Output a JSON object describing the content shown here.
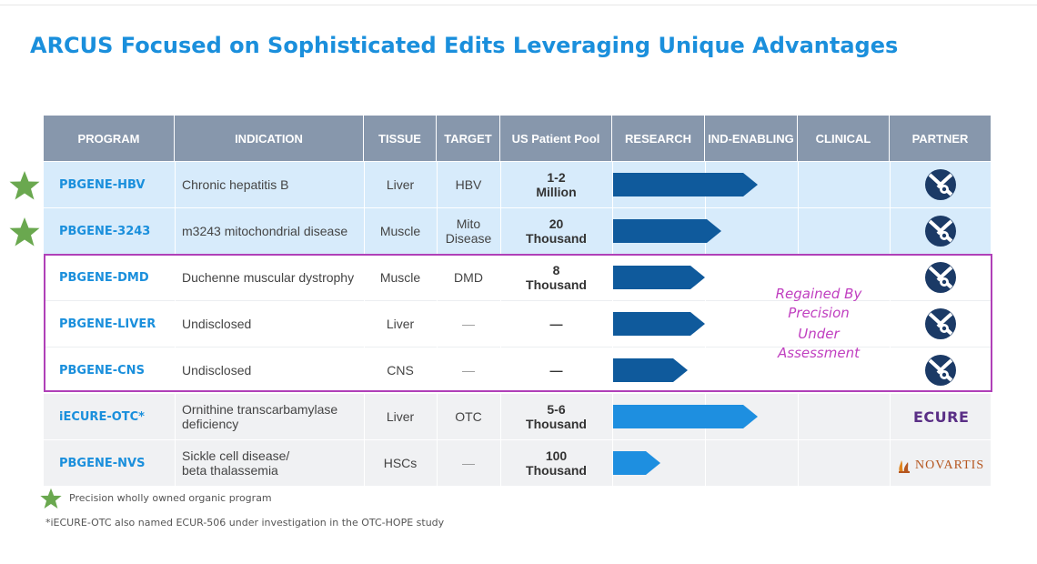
{
  "slide": {
    "title": "ARCUS Focused on Sophisticated Edits Leveraging Unique Advantages"
  },
  "table": {
    "headers": [
      "PROGRAM",
      "INDICATION",
      "TISSUE",
      "TARGET",
      "US Patient Pool",
      "RESEARCH",
      "IND-ENABLING",
      "CLINICAL",
      "PARTNER"
    ],
    "rows": [
      {
        "program": "PBGENE-HBV",
        "indication": "Chronic hepatitis B",
        "tissue": "Liver",
        "target": "HBV",
        "pool_line1": "1-2",
        "pool_line2": "Million",
        "stage_progress": 0.52,
        "bar_color": "#0f5a9c",
        "partner": "Precision",
        "wholly_owned": true
      },
      {
        "program": "PBGENE-3243",
        "indication": "m3243 mitochondrial disease",
        "tissue": "Muscle",
        "target_line1": "Mito",
        "target_line2": "Disease",
        "pool_line1": "20",
        "pool_line2": "Thousand",
        "stage_progress": 0.39,
        "bar_color": "#0f5a9c",
        "partner": "Precision",
        "wholly_owned": true
      },
      {
        "program": "PBGENE-DMD",
        "indication": "Duchenne muscular dystrophy",
        "tissue": "Muscle",
        "target": "DMD",
        "pool_line1": "8",
        "pool_line2": "Thousand",
        "stage_progress": 0.33,
        "bar_color": "#0f5a9c",
        "partner": "Precision"
      },
      {
        "program": "PBGENE-LIVER",
        "indication": "Undisclosed",
        "tissue": "Liver",
        "target": "—",
        "pool_line1": "—",
        "stage_progress": 0.33,
        "bar_color": "#0f5a9c",
        "partner": "Precision"
      },
      {
        "program": "PBGENE-CNS",
        "indication": "Undisclosed",
        "tissue": "CNS",
        "target": "—",
        "pool_line1": "—",
        "stage_progress": 0.27,
        "bar_color": "#0f5a9c",
        "partner": "Precision"
      },
      {
        "program": "iECURE-OTC*",
        "indication_line1": "Ornithine transcarbamylase",
        "indication_line2": "deficiency",
        "tissue": "Liver",
        "target": "OTC",
        "pool_line1": "5-6",
        "pool_line2": "Thousand",
        "stage_progress": 0.52,
        "bar_color": "#1e8fe0",
        "partner": "ECURE"
      },
      {
        "program": "PBGENE-NVS",
        "indication_line1": "Sickle cell disease/",
        "indication_line2": "beta thalassemia",
        "tissue": "HSCs",
        "target": "—",
        "pool_line1": "100",
        "pool_line2": "Thousand",
        "stage_progress": 0.17,
        "bar_color": "#1e8fe0",
        "partner": "NOVARTIS"
      }
    ]
  },
  "annotation": {
    "line1": "Regained By",
    "line2": "Precision",
    "line3": "Under",
    "line4": "Assessment"
  },
  "partners": {
    "ecure": "ECURE",
    "novartis": "NOVARTIS"
  },
  "legend": {
    "star_text": "Precision wholly owned organic program",
    "star_color": "#6aa84f"
  },
  "footnote": "*iECURE-OTC also named ECUR-506 under investigation in the OTC-HOPE study"
}
